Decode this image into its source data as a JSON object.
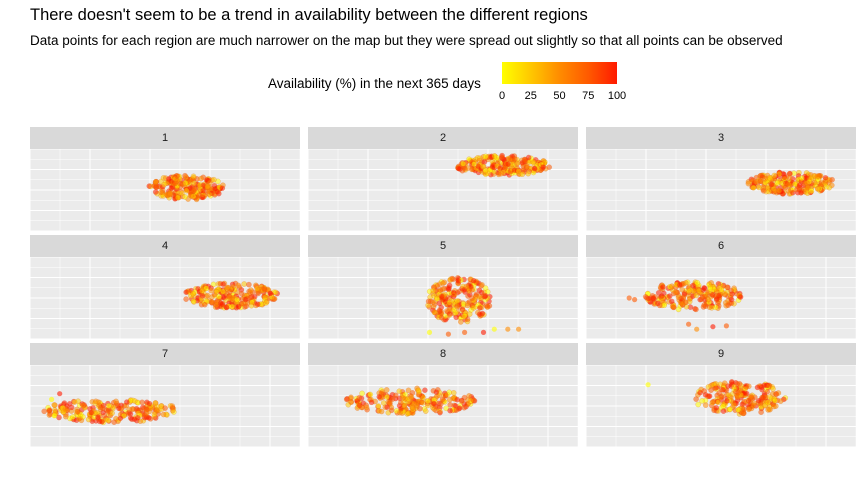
{
  "title": "There doesn't seem to be a trend in availability between the different regions",
  "subtitle": "Data points for each region are much narrower on the map but they were spread out slightly so that all points can be observed",
  "legend": {
    "title": "Availability (%) in the next 365 days",
    "ticks": [
      "0",
      "25",
      "50",
      "75",
      "100"
    ],
    "range": [
      0,
      100
    ],
    "colors": [
      "#ffff00",
      "#ffc800",
      "#ff8c00",
      "#ff5a00",
      "#ff1a00"
    ]
  },
  "chart_data": {
    "type": "scatter",
    "facet_by": "region",
    "xlim": [
      0,
      100
    ],
    "ylim": [
      0,
      100
    ],
    "grid": true,
    "legend_position": "top",
    "color_variable": "Availability (%) in the next 365 days",
    "panels": [
      {
        "label": "1",
        "cluster": {
          "x": [
            44,
            72
          ],
          "y": [
            38,
            68
          ]
        }
      },
      {
        "label": "2",
        "cluster": {
          "x": [
            54,
            90
          ],
          "y": [
            68,
            92
          ]
        }
      },
      {
        "label": "3",
        "cluster": {
          "x": [
            60,
            92
          ],
          "y": [
            45,
            72
          ]
        }
      },
      {
        "label": "4",
        "cluster": {
          "x": [
            57,
            92
          ],
          "y": [
            38,
            68
          ]
        }
      },
      {
        "label": "5",
        "cluster": {
          "x": [
            44,
            68
          ],
          "y": [
            20,
            75
          ]
        },
        "outliers": [
          [
            45,
            8
          ],
          [
            52,
            6
          ],
          [
            58,
            8
          ],
          [
            65,
            8
          ],
          [
            69,
            12
          ],
          [
            74,
            12
          ],
          [
            78,
            12
          ]
        ]
      },
      {
        "label": "6",
        "cluster": {
          "x": [
            22,
            58
          ],
          "y": [
            35,
            70
          ]
        },
        "outliers": [
          [
            16,
            50
          ],
          [
            18,
            48
          ],
          [
            38,
            18
          ],
          [
            41,
            12
          ],
          [
            47,
            15
          ],
          [
            52,
            16
          ]
        ]
      },
      {
        "label": "7",
        "cluster": {
          "x": [
            5,
            55
          ],
          "y": [
            30,
            58
          ]
        },
        "outliers": [
          [
            8,
            58
          ],
          [
            11,
            65
          ],
          [
            9,
            38
          ],
          [
            13,
            46
          ]
        ]
      },
      {
        "label": "8",
        "cluster": {
          "x": [
            14,
            62
          ],
          "y": [
            40,
            72
          ]
        }
      },
      {
        "label": "9",
        "cluster": {
          "x": [
            40,
            74
          ],
          "y": [
            40,
            80
          ]
        },
        "outliers": [
          [
            23,
            76
          ]
        ]
      }
    ]
  }
}
